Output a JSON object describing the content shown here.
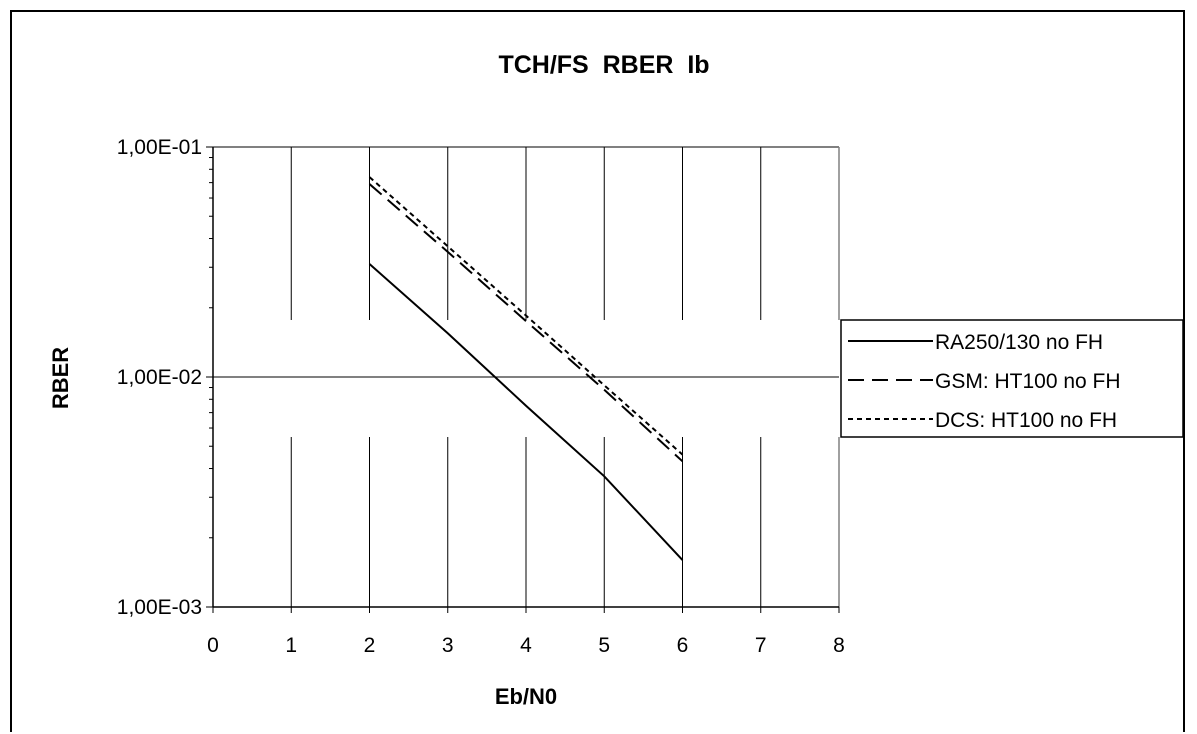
{
  "chart_data": {
    "type": "line",
    "title": "TCH/FS  RBER  Ib",
    "xlabel": "Eb/N0",
    "ylabel": "RBER",
    "xlim": [
      0,
      8
    ],
    "ylim": [
      0.001,
      0.1
    ],
    "yscale": "log",
    "x_ticks": [
      "0",
      "1",
      "2",
      "3",
      "4",
      "5",
      "6",
      "7",
      "8"
    ],
    "y_ticks": [
      "1,00E-01",
      "1,00E-02",
      "1,00E-03"
    ],
    "grid": true,
    "legend_position": "right",
    "series": [
      {
        "name": "RA250/130 no FH",
        "style": "solid",
        "x": [
          2,
          3,
          4,
          5,
          6
        ],
        "values": [
          0.031,
          0.0155,
          0.0075,
          0.0037,
          0.0016
        ]
      },
      {
        "name": "GSM: HT100 no FH",
        "style": "dashed",
        "x": [
          2,
          3,
          4,
          5,
          6
        ],
        "values": [
          0.069,
          0.035,
          0.0175,
          0.0088,
          0.0043
        ]
      },
      {
        "name": "DCS: HT100 no FH",
        "style": "dotted",
        "x": [
          2,
          3,
          4,
          5,
          6
        ],
        "values": [
          0.074,
          0.037,
          0.0185,
          0.0092,
          0.0046
        ]
      }
    ]
  }
}
